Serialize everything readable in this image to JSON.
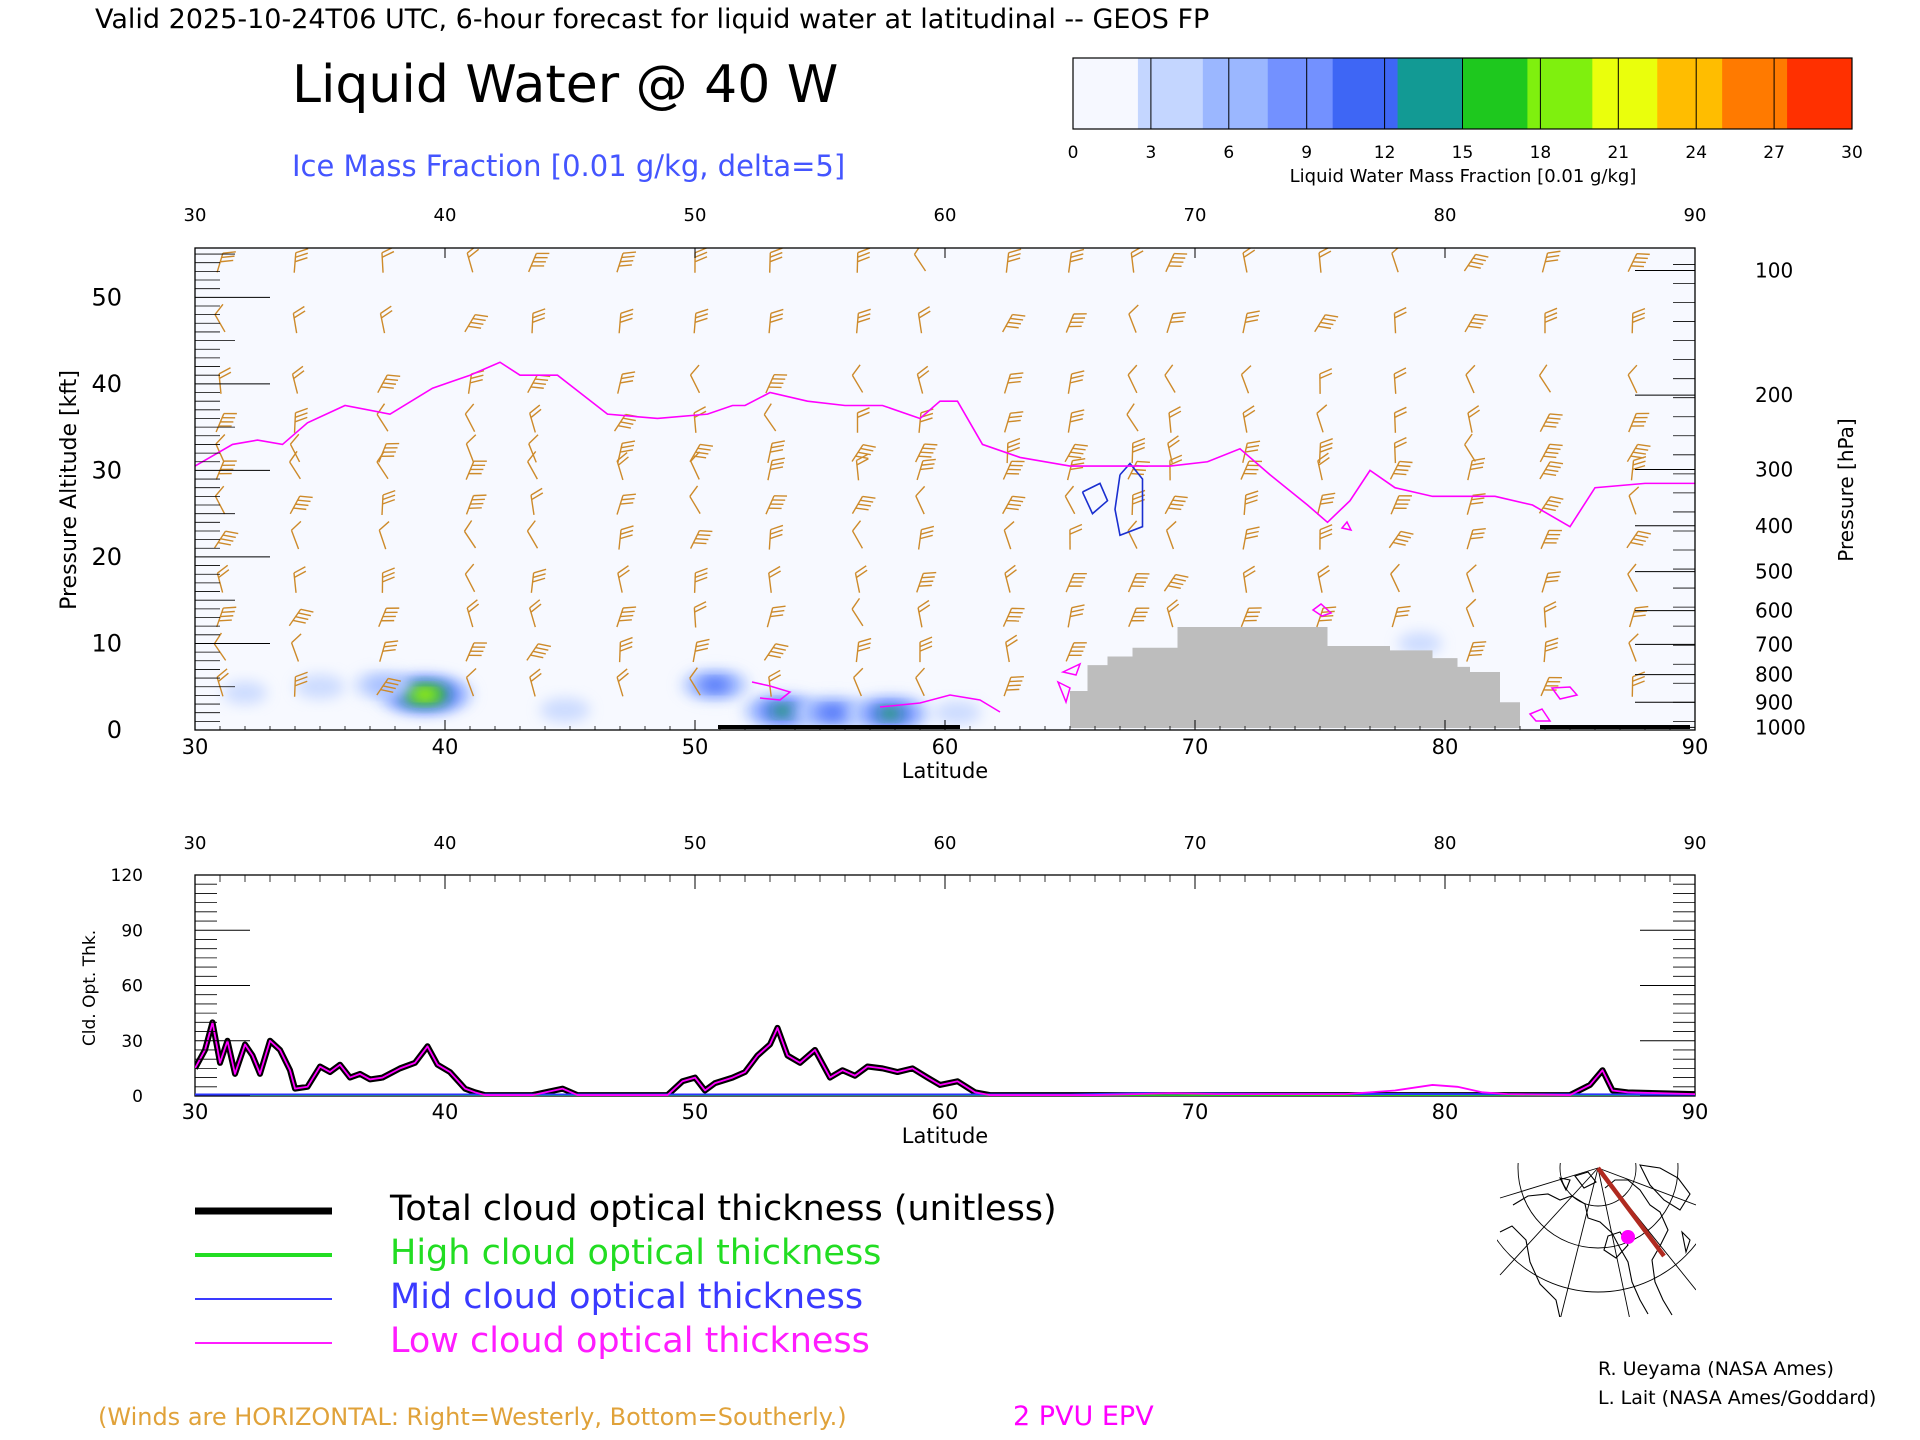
{
  "header": {
    "valid_line": "Valid 2025-10-24T06 UTC, 6-hour forecast for liquid water at latitudinal -- GEOS FP",
    "title": "Liquid Water @ 40 W",
    "subtitle": "Ice Mass Fraction [0.01 g/kg, delta=5]"
  },
  "colorbar": {
    "ticks": [
      "0",
      "3",
      "6",
      "9",
      "12",
      "15",
      "18",
      "21",
      "24",
      "27",
      "30"
    ],
    "label": "Liquid Water Mass Fraction [0.01 g/kg]",
    "colors": [
      "#f6f8ff",
      "#c4d6ff",
      "#9bb7ff",
      "#7391ff",
      "#3e66f5",
      "#129a94",
      "#1ec81e",
      "#7ff00e",
      "#eaff0c",
      "#ffbd00",
      "#ff7a00",
      "#ff3000"
    ]
  },
  "chart_data": [
    {
      "type": "heatmap",
      "name": "Liquid water cross-section",
      "xlabel": "Latitude",
      "ylabel": "Pressure Altitude [kft]",
      "ylabel_right": "Pressure [hPa]",
      "x_ticks": [
        "30",
        "40",
        "50",
        "60",
        "70",
        "80",
        "90"
      ],
      "y_ticks": [
        "0",
        "10",
        "20",
        "30",
        "40",
        "50"
      ],
      "xlim": [
        30,
        90
      ],
      "ylim": [
        0,
        55.7
      ],
      "pressure_ticks": [
        {
          "label": "100",
          "kft": 53.1
        },
        {
          "label": "200",
          "kft": 38.7
        },
        {
          "label": "300",
          "kft": 30.1
        },
        {
          "label": "400",
          "kft": 23.6
        },
        {
          "label": "500",
          "kft": 18.3
        },
        {
          "label": "600",
          "kft": 13.8
        },
        {
          "label": "700",
          "kft": 9.9
        },
        {
          "label": "800",
          "kft": 6.4
        },
        {
          "label": "900",
          "kft": 3.2
        },
        {
          "label": "1000",
          "kft": 0.3
        }
      ],
      "liquid_water_blobs": [
        {
          "lat": 39.2,
          "kft": 4.1,
          "value": 22
        },
        {
          "lat": 37.5,
          "kft": 5.2,
          "value": 8
        },
        {
          "lat": 35.0,
          "kft": 5.0,
          "value": 5
        },
        {
          "lat": 32.0,
          "kft": 4.3,
          "value": 3
        },
        {
          "lat": 44.8,
          "kft": 2.3,
          "value": 5
        },
        {
          "lat": 50.8,
          "kft": 5.2,
          "value": 12
        },
        {
          "lat": 53.5,
          "kft": 2.2,
          "value": 16
        },
        {
          "lat": 55.5,
          "kft": 2.0,
          "value": 14
        },
        {
          "lat": 57.8,
          "kft": 1.9,
          "value": 17
        },
        {
          "lat": 60.5,
          "kft": 2.0,
          "value": 4
        },
        {
          "lat": 79.0,
          "kft": 10.0,
          "value": 3
        }
      ],
      "epv_2pvu_kft": [
        [
          30.0,
          30.5
        ],
        [
          31.5,
          33.0
        ],
        [
          32.5,
          33.5
        ],
        [
          33.5,
          33.0
        ],
        [
          34.5,
          35.5
        ],
        [
          36.0,
          37.5
        ],
        [
          37.8,
          36.5
        ],
        [
          39.5,
          39.5
        ],
        [
          41.0,
          41.0
        ],
        [
          42.2,
          42.5
        ],
        [
          43.0,
          41.0
        ],
        [
          44.5,
          41.0
        ],
        [
          46.5,
          36.5
        ],
        [
          48.5,
          36.0
        ],
        [
          50.5,
          36.5
        ],
        [
          51.5,
          37.5
        ],
        [
          52.0,
          37.5
        ],
        [
          53.0,
          39.0
        ],
        [
          54.5,
          38.0
        ],
        [
          56.0,
          37.5
        ],
        [
          57.5,
          37.5
        ],
        [
          59.0,
          36.0
        ],
        [
          59.8,
          38.0
        ],
        [
          60.5,
          38.0
        ],
        [
          61.5,
          33.0
        ],
        [
          63.0,
          31.5
        ],
        [
          65.0,
          30.5
        ],
        [
          67.0,
          30.5
        ],
        [
          69.0,
          30.5
        ],
        [
          70.5,
          31.0
        ],
        [
          71.8,
          32.5
        ],
        [
          73.0,
          29.5
        ],
        [
          74.5,
          26.0
        ],
        [
          75.3,
          24.0
        ],
        [
          76.2,
          26.5
        ],
        [
          77.0,
          30.0
        ],
        [
          78.0,
          28.0
        ],
        [
          79.5,
          27.0
        ],
        [
          82.0,
          27.0
        ],
        [
          83.5,
          26.0
        ],
        [
          85.0,
          23.5
        ],
        [
          86.0,
          28.0
        ],
        [
          88.0,
          28.5
        ],
        [
          90.0,
          28.5
        ]
      ],
      "terrain_kft": [
        [
          65.0,
          0
        ],
        [
          65.0,
          4.5
        ],
        [
          65.7,
          4.5
        ],
        [
          65.7,
          7.5
        ],
        [
          66.5,
          7.5
        ],
        [
          66.5,
          8.5
        ],
        [
          67.5,
          8.5
        ],
        [
          67.5,
          9.5
        ],
        [
          69.3,
          9.5
        ],
        [
          69.3,
          11.9
        ],
        [
          75.3,
          11.9
        ],
        [
          75.3,
          9.7
        ],
        [
          77.8,
          9.7
        ],
        [
          77.8,
          9.2
        ],
        [
          79.5,
          9.2
        ],
        [
          79.5,
          8.3
        ],
        [
          80.5,
          8.3
        ],
        [
          80.5,
          7.3
        ],
        [
          81.0,
          7.3
        ],
        [
          81.0,
          6.7
        ],
        [
          82.2,
          6.7
        ],
        [
          82.2,
          3.2
        ],
        [
          83.0,
          3.2
        ],
        [
          83.0,
          0
        ]
      ],
      "ice_contours": [
        [
          [
            65.5,
            27.5
          ],
          [
            66.2,
            28.5
          ],
          [
            66.5,
            26.5
          ],
          [
            65.9,
            25.0
          ],
          [
            65.5,
            27.5
          ]
        ],
        [
          [
            67.0,
            29.5
          ],
          [
            67.4,
            30.8
          ],
          [
            67.9,
            29.0
          ],
          [
            67.9,
            23.5
          ],
          [
            67.0,
            22.5
          ],
          [
            66.8,
            25.5
          ],
          [
            67.0,
            29.5
          ]
        ]
      ],
      "wind_barb_latitudes": [
        31,
        34,
        37.5,
        41,
        43.5,
        47,
        50,
        53,
        56.5,
        59,
        62.5,
        65,
        67.5,
        69,
        72,
        75,
        78,
        81,
        84,
        87.5
      ],
      "wind_barb_levels_kft": [
        54,
        47,
        40,
        35.5,
        32,
        30,
        26,
        22,
        17,
        13,
        9,
        5,
        1
      ]
    },
    {
      "type": "line",
      "name": "Cloud optical thickness",
      "xlabel": "Latitude",
      "ylabel": "Cld. Opt. Thk.",
      "x_ticks": [
        "30",
        "40",
        "50",
        "60",
        "70",
        "80",
        "90"
      ],
      "y_ticks": [
        "0",
        "30",
        "60",
        "90",
        "120"
      ],
      "xlim": [
        30,
        90
      ],
      "ylim": [
        0,
        120
      ],
      "series": [
        {
          "name": "Total cloud optical thickness (unitless)",
          "color": "#000000",
          "points": [
            [
              30,
              15
            ],
            [
              30.4,
              25
            ],
            [
              30.7,
              40
            ],
            [
              31.0,
              18
            ],
            [
              31.3,
              30
            ],
            [
              31.6,
              12
            ],
            [
              32.0,
              28
            ],
            [
              32.3,
              22
            ],
            [
              32.6,
              12
            ],
            [
              33.0,
              30
            ],
            [
              33.4,
              25
            ],
            [
              33.8,
              14
            ],
            [
              34.0,
              4
            ],
            [
              34.5,
              5
            ],
            [
              35.0,
              16
            ],
            [
              35.4,
              13
            ],
            [
              35.8,
              17
            ],
            [
              36.2,
              10
            ],
            [
              36.6,
              12
            ],
            [
              37.0,
              9
            ],
            [
              37.5,
              10
            ],
            [
              38.2,
              15
            ],
            [
              38.8,
              18
            ],
            [
              39.3,
              27
            ],
            [
              39.7,
              17
            ],
            [
              40.2,
              13
            ],
            [
              40.8,
              4
            ],
            [
              41.2,
              2
            ],
            [
              41.6,
              0.5
            ],
            [
              43.5,
              0.5
            ],
            [
              44.7,
              4
            ],
            [
              45.3,
              0.5
            ],
            [
              48.9,
              0.5
            ],
            [
              49.5,
              8
            ],
            [
              50.0,
              10
            ],
            [
              50.4,
              3
            ],
            [
              50.8,
              7
            ],
            [
              51.5,
              10
            ],
            [
              52.0,
              13
            ],
            [
              52.5,
              22
            ],
            [
              53.0,
              28
            ],
            [
              53.3,
              37
            ],
            [
              53.7,
              22
            ],
            [
              54.2,
              18
            ],
            [
              54.8,
              25
            ],
            [
              55.4,
              10
            ],
            [
              55.9,
              14
            ],
            [
              56.4,
              11
            ],
            [
              56.9,
              16
            ],
            [
              57.5,
              15
            ],
            [
              58.1,
              13
            ],
            [
              58.7,
              15
            ],
            [
              59.3,
              10
            ],
            [
              59.8,
              6
            ],
            [
              60.5,
              8
            ],
            [
              61.2,
              2
            ],
            [
              61.8,
              0.5
            ],
            [
              85.0,
              0.5
            ],
            [
              85.8,
              6
            ],
            [
              86.3,
              14
            ],
            [
              86.7,
              3
            ],
            [
              87.3,
              2
            ],
            [
              90,
              1
            ]
          ]
        },
        {
          "name": "High cloud optical thickness",
          "color": "#1fd01f",
          "points": [
            [
              30,
              0.3
            ],
            [
              90,
              0.3
            ]
          ]
        },
        {
          "name": "Mid cloud optical thickness",
          "color": "#2b36ff",
          "points": [
            [
              30,
              0.8
            ],
            [
              65,
              0.8
            ],
            [
              68,
              1.5
            ],
            [
              72,
              1.2
            ],
            [
              90,
              0.8
            ]
          ]
        },
        {
          "name": "Low cloud optical thickness",
          "color": "#ff00ff",
          "points": [
            [
              30,
              15
            ],
            [
              30.4,
              25
            ],
            [
              30.7,
              40
            ],
            [
              31.0,
              18
            ],
            [
              31.3,
              30
            ],
            [
              31.6,
              12
            ],
            [
              32.0,
              28
            ],
            [
              32.3,
              22
            ],
            [
              32.6,
              12
            ],
            [
              33.0,
              30
            ],
            [
              33.4,
              25
            ],
            [
              33.8,
              14
            ],
            [
              34.0,
              4
            ],
            [
              34.5,
              5
            ],
            [
              35.0,
              16
            ],
            [
              35.4,
              13
            ],
            [
              35.8,
              17
            ],
            [
              36.2,
              10
            ],
            [
              36.6,
              12
            ],
            [
              37.0,
              9
            ],
            [
              37.5,
              10
            ],
            [
              38.2,
              15
            ],
            [
              38.8,
              18
            ],
            [
              39.3,
              27
            ],
            [
              39.7,
              17
            ],
            [
              40.2,
              13
            ],
            [
              40.8,
              4
            ],
            [
              41.2,
              2
            ],
            [
              41.6,
              0.5
            ],
            [
              43.5,
              0.5
            ],
            [
              44.7,
              4
            ],
            [
              45.3,
              0.5
            ],
            [
              48.9,
              0.5
            ],
            [
              49.5,
              8
            ],
            [
              50.0,
              10
            ],
            [
              50.4,
              3
            ],
            [
              50.8,
              7
            ],
            [
              51.5,
              10
            ],
            [
              52.0,
              13
            ],
            [
              52.5,
              22
            ],
            [
              53.0,
              28
            ],
            [
              53.3,
              37
            ],
            [
              53.7,
              22
            ],
            [
              54.2,
              18
            ],
            [
              54.8,
              25
            ],
            [
              55.4,
              10
            ],
            [
              55.9,
              14
            ],
            [
              56.4,
              11
            ],
            [
              56.9,
              16
            ],
            [
              57.5,
              15
            ],
            [
              58.1,
              13
            ],
            [
              58.7,
              15
            ],
            [
              59.3,
              10
            ],
            [
              59.8,
              6
            ],
            [
              60.5,
              8
            ],
            [
              61.2,
              2
            ],
            [
              61.8,
              0.5
            ],
            [
              66.0,
              0.5
            ],
            [
              69.0,
              1.5
            ],
            [
              71.0,
              1.0
            ],
            [
              76.0,
              1.0
            ],
            [
              78.0,
              3
            ],
            [
              79.5,
              6
            ],
            [
              80.5,
              5
            ],
            [
              81.5,
              2
            ],
            [
              82.5,
              1
            ],
            [
              85.0,
              0.5
            ],
            [
              85.8,
              6
            ],
            [
              86.3,
              14
            ],
            [
              86.7,
              3
            ],
            [
              87.3,
              2
            ],
            [
              90,
              1
            ]
          ]
        }
      ]
    }
  ],
  "legend": [
    {
      "label": "Total cloud optical thickness (unitless)",
      "color": "#000000",
      "name": "total"
    },
    {
      "label": "High cloud optical thickness",
      "color": "#22dd22",
      "name": "high"
    },
    {
      "label": "Mid cloud optical thickness",
      "color": "#3a3aff",
      "name": "mid"
    },
    {
      "label": "Low cloud optical thickness",
      "color": "#ff1cff",
      "name": "low"
    }
  ],
  "footer": {
    "winds_note": "(Winds are HORIZONTAL: Right=Westerly, Bottom=Southerly.)",
    "epv_label": "2 PVU EPV",
    "credit1": "R. Ueyama (NASA Ames)",
    "credit2": "L. Lait (NASA Ames/Goddard)"
  },
  "colors": {
    "wind": "#cd8a2a",
    "epv": "#ff00ff",
    "terrain": "#bdbdbd",
    "ice": "#1a2fd0",
    "subtitle": "#4455ff"
  }
}
